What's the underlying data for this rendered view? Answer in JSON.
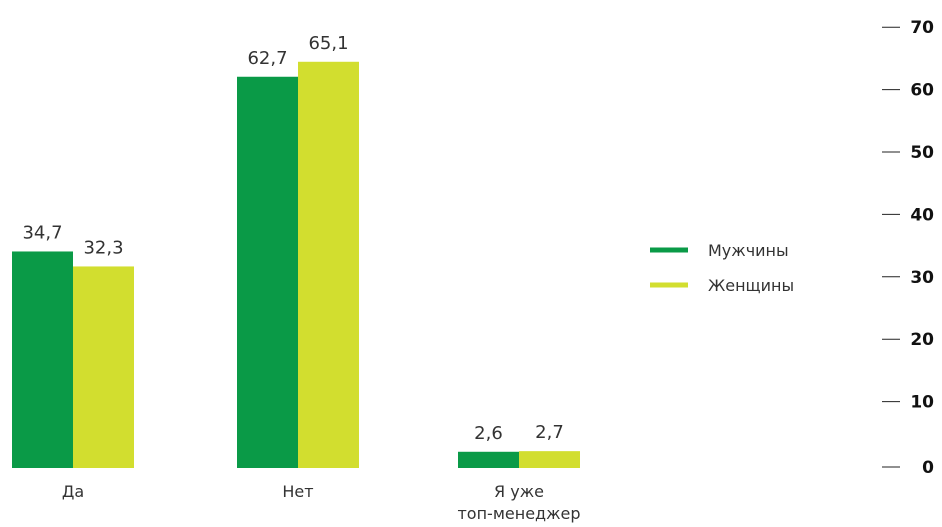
{
  "chart_data": {
    "type": "bar",
    "title": "",
    "categories": [
      "Да",
      "Нет",
      "Я уже топ-менеджер"
    ],
    "category_lines": [
      [
        "Да"
      ],
      [
        "Нет"
      ],
      [
        "Я уже",
        "топ-менеджер"
      ]
    ],
    "series": [
      {
        "name": "Мужчины",
        "values": [
          34.7,
          62.7,
          2.6
        ],
        "labels": [
          "34,7",
          "62,7",
          "2,6"
        ],
        "color": "#0a9a47"
      },
      {
        "name": "Женщины",
        "values": [
          32.3,
          65.1,
          2.7
        ],
        "labels": [
          "32,3",
          "65,1",
          "2,7"
        ],
        "color": "#d2de2f"
      }
    ],
    "ylim": [
      0,
      70
    ],
    "yticks": [
      0,
      10,
      20,
      30,
      40,
      50,
      60,
      70
    ],
    "y_axis_position": "right",
    "legend_position": "center-right",
    "grid": false
  }
}
